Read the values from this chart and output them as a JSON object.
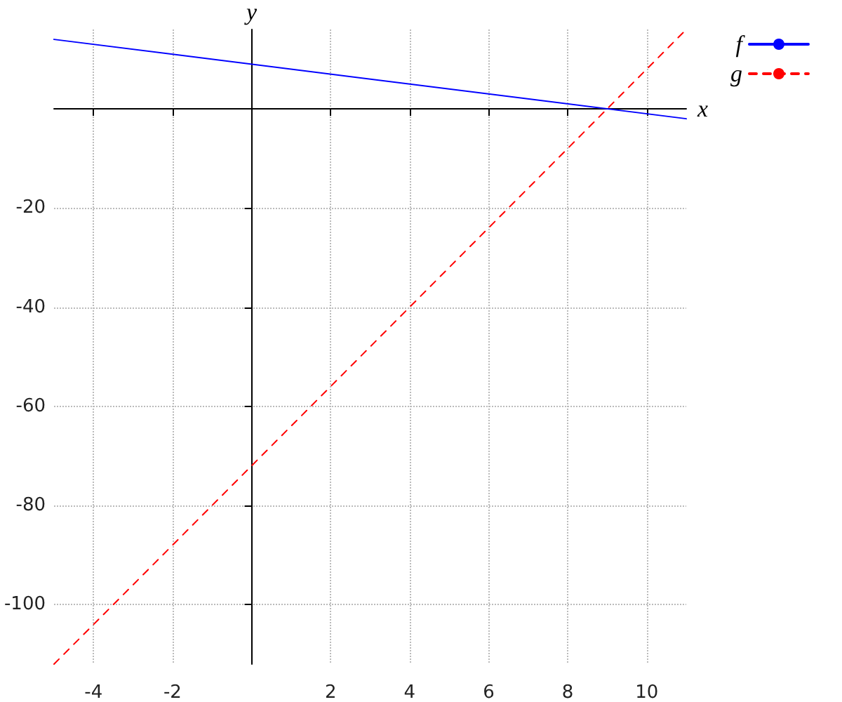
{
  "chart_data": {
    "type": "line",
    "xlabel": "x",
    "ylabel": "y",
    "x": [
      -5,
      11
    ],
    "series": [
      {
        "name": "f",
        "color": "#0000ff",
        "values": [
          14,
          -2
        ],
        "line_style": "solid"
      },
      {
        "name": "g",
        "color": "#ff0000",
        "values": [
          -112,
          16
        ],
        "line_style": "dashed"
      }
    ],
    "xlim": [
      -5,
      11
    ],
    "ylim": [
      -112,
      16
    ],
    "xticks": [
      -4,
      -2,
      2,
      4,
      6,
      8,
      10
    ],
    "yticks": [
      -100,
      -80,
      -60,
      -40,
      -20
    ],
    "grid": true,
    "legend": "top right",
    "marker": "none"
  }
}
